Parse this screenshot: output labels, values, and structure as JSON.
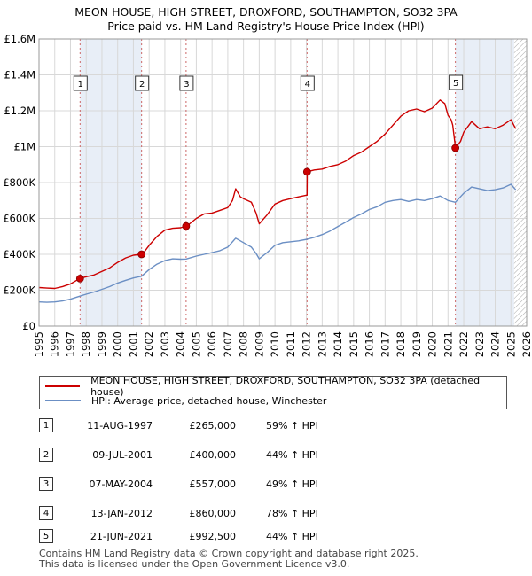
{
  "title_line1": "MEON HOUSE, HIGH STREET, DROXFORD, SOUTHAMPTON, SO32 3PA",
  "title_line2": "Price paid vs. HM Land Registry's House Price Index (HPI)",
  "colors": {
    "property": "#cc0000",
    "hpi": "#6b8fc4",
    "highlight": "#e8eef7",
    "hatch": "#aaaaaa",
    "grid": "#d8d8d8",
    "vline": "#cc6666"
  },
  "legend": {
    "property_label": "MEON HOUSE, HIGH STREET, DROXFORD, SOUTHAMPTON, SO32 3PA (detached house)",
    "hpi_label": "HPI: Average price, detached house, Winchester"
  },
  "sales": [
    {
      "num": "1",
      "date": "11-AUG-1997",
      "price": "£265,000",
      "hpi": "59% ↑ HPI",
      "x": 1997.61,
      "y": 265000
    },
    {
      "num": "2",
      "date": "09-JUL-2001",
      "price": "£400,000",
      "hpi": "44% ↑ HPI",
      "x": 2001.52,
      "y": 400000
    },
    {
      "num": "3",
      "date": "07-MAY-2004",
      "price": "£557,000",
      "hpi": "49% ↑ HPI",
      "x": 2004.35,
      "y": 557000
    },
    {
      "num": "4",
      "date": "13-JAN-2012",
      "price": "£860,000",
      "hpi": "78% ↑ HPI",
      "x": 2012.04,
      "y": 860000
    },
    {
      "num": "5",
      "date": "21-JUN-2021",
      "price": "£992,500",
      "hpi": "44% ↑ HPI",
      "x": 2021.47,
      "y": 992500
    }
  ],
  "footer_line1": "Contains HM Land Registry data © Crown copyright and database right 2025.",
  "footer_line2": "This data is licensed under the Open Government Licence v3.0.",
  "chart_data": {
    "type": "line",
    "title": "MEON HOUSE, HIGH STREET, DROXFORD, SOUTHAMPTON, SO32 3PA",
    "subtitle": "Price paid vs. HM Land Registry's House Price Index (HPI)",
    "xlim": [
      1995,
      2026
    ],
    "ylim": [
      0,
      1600000
    ],
    "x_ticks": [
      "1995",
      "1996",
      "1997",
      "1998",
      "1999",
      "2000",
      "2001",
      "2002",
      "2003",
      "2004",
      "2005",
      "2006",
      "2007",
      "2008",
      "2009",
      "2010",
      "2011",
      "2012",
      "2013",
      "2014",
      "2015",
      "2016",
      "2017",
      "2018",
      "2019",
      "2020",
      "2021",
      "2022",
      "2023",
      "2024",
      "2025",
      "2026"
    ],
    "y_ticks": [
      {
        "value": 0,
        "label": "£0"
      },
      {
        "value": 200000,
        "label": "£200K"
      },
      {
        "value": 400000,
        "label": "£400K"
      },
      {
        "value": 600000,
        "label": "£600K"
      },
      {
        "value": 800000,
        "label": "£800K"
      },
      {
        "value": 1000000,
        "label": "£1M"
      },
      {
        "value": 1200000,
        "label": "£1.2M"
      },
      {
        "value": 1400000,
        "label": "£1.4M"
      },
      {
        "value": 1600000,
        "label": "£1.6M"
      }
    ],
    "highlight_ranges": [
      [
        1997.61,
        2001.52
      ],
      [
        2021.47,
        2025.2
      ]
    ],
    "future_hatch_from": 2025.2,
    "series": [
      {
        "name": "MEON HOUSE, HIGH STREET, DROXFORD, SOUTHAMPTON, SO32 3PA (detached house)",
        "color": "#cc0000",
        "points": [
          [
            1995.0,
            215000
          ],
          [
            1995.5,
            212000
          ],
          [
            1996.0,
            210000
          ],
          [
            1996.5,
            220000
          ],
          [
            1997.0,
            235000
          ],
          [
            1997.6,
            265000
          ],
          [
            1998.0,
            275000
          ],
          [
            1998.5,
            285000
          ],
          [
            1999.0,
            305000
          ],
          [
            1999.5,
            325000
          ],
          [
            2000.0,
            355000
          ],
          [
            2000.5,
            380000
          ],
          [
            2001.0,
            395000
          ],
          [
            2001.52,
            400000
          ],
          [
            2001.53,
            395000
          ],
          [
            2002.0,
            450000
          ],
          [
            2002.5,
            500000
          ],
          [
            2003.0,
            535000
          ],
          [
            2003.5,
            545000
          ],
          [
            2004.0,
            548000
          ],
          [
            2004.35,
            557000
          ],
          [
            2004.36,
            555000
          ],
          [
            2005.0,
            600000
          ],
          [
            2005.5,
            625000
          ],
          [
            2006.0,
            630000
          ],
          [
            2006.5,
            645000
          ],
          [
            2007.0,
            660000
          ],
          [
            2007.3,
            700000
          ],
          [
            2007.5,
            765000
          ],
          [
            2007.8,
            720000
          ],
          [
            2008.0,
            710000
          ],
          [
            2008.5,
            690000
          ],
          [
            2008.8,
            630000
          ],
          [
            2009.0,
            570000
          ],
          [
            2009.5,
            620000
          ],
          [
            2010.0,
            680000
          ],
          [
            2010.5,
            700000
          ],
          [
            2011.0,
            710000
          ],
          [
            2011.5,
            720000
          ],
          [
            2012.04,
            730000
          ],
          [
            2012.05,
            860000
          ],
          [
            2012.5,
            870000
          ],
          [
            2013.0,
            875000
          ],
          [
            2013.5,
            890000
          ],
          [
            2014.0,
            900000
          ],
          [
            2014.5,
            920000
          ],
          [
            2015.0,
            950000
          ],
          [
            2015.5,
            970000
          ],
          [
            2016.0,
            1000000
          ],
          [
            2016.5,
            1030000
          ],
          [
            2017.0,
            1070000
          ],
          [
            2017.5,
            1120000
          ],
          [
            2018.0,
            1170000
          ],
          [
            2018.5,
            1200000
          ],
          [
            2019.0,
            1210000
          ],
          [
            2019.5,
            1195000
          ],
          [
            2020.0,
            1215000
          ],
          [
            2020.5,
            1260000
          ],
          [
            2020.8,
            1240000
          ],
          [
            2021.0,
            1175000
          ],
          [
            2021.2,
            1150000
          ],
          [
            2021.3,
            1120000
          ],
          [
            2021.47,
            1000000
          ],
          [
            2021.48,
            992500
          ],
          [
            2021.8,
            1030000
          ],
          [
            2022.0,
            1080000
          ],
          [
            2022.5,
            1140000
          ],
          [
            2023.0,
            1100000
          ],
          [
            2023.5,
            1110000
          ],
          [
            2024.0,
            1100000
          ],
          [
            2024.5,
            1120000
          ],
          [
            2025.0,
            1150000
          ],
          [
            2025.3,
            1100000
          ]
        ]
      },
      {
        "name": "HPI: Average price, detached house, Winchester",
        "color": "#6b8fc4",
        "points": [
          [
            1995.0,
            135000
          ],
          [
            1995.5,
            133000
          ],
          [
            1996.0,
            135000
          ],
          [
            1996.5,
            140000
          ],
          [
            1997.0,
            150000
          ],
          [
            1997.6,
            167000
          ],
          [
            1998.0,
            178000
          ],
          [
            1998.5,
            190000
          ],
          [
            1999.0,
            205000
          ],
          [
            1999.5,
            220000
          ],
          [
            2000.0,
            240000
          ],
          [
            2000.5,
            255000
          ],
          [
            2001.0,
            268000
          ],
          [
            2001.52,
            278000
          ],
          [
            2002.0,
            315000
          ],
          [
            2002.5,
            345000
          ],
          [
            2003.0,
            365000
          ],
          [
            2003.5,
            375000
          ],
          [
            2004.0,
            373000
          ],
          [
            2004.35,
            374000
          ],
          [
            2005.0,
            390000
          ],
          [
            2005.5,
            400000
          ],
          [
            2006.0,
            410000
          ],
          [
            2006.5,
            420000
          ],
          [
            2007.0,
            440000
          ],
          [
            2007.5,
            490000
          ],
          [
            2007.8,
            475000
          ],
          [
            2008.0,
            465000
          ],
          [
            2008.5,
            440000
          ],
          [
            2008.8,
            405000
          ],
          [
            2009.0,
            375000
          ],
          [
            2009.5,
            410000
          ],
          [
            2010.0,
            450000
          ],
          [
            2010.5,
            465000
          ],
          [
            2011.0,
            470000
          ],
          [
            2011.5,
            475000
          ],
          [
            2012.04,
            484000
          ],
          [
            2012.5,
            495000
          ],
          [
            2013.0,
            510000
          ],
          [
            2013.5,
            530000
          ],
          [
            2014.0,
            555000
          ],
          [
            2014.5,
            580000
          ],
          [
            2015.0,
            605000
          ],
          [
            2015.5,
            625000
          ],
          [
            2016.0,
            650000
          ],
          [
            2016.5,
            665000
          ],
          [
            2017.0,
            690000
          ],
          [
            2017.5,
            700000
          ],
          [
            2018.0,
            705000
          ],
          [
            2018.5,
            695000
          ],
          [
            2019.0,
            705000
          ],
          [
            2019.5,
            700000
          ],
          [
            2020.0,
            710000
          ],
          [
            2020.5,
            725000
          ],
          [
            2021.0,
            700000
          ],
          [
            2021.47,
            690000
          ],
          [
            2022.0,
            740000
          ],
          [
            2022.5,
            775000
          ],
          [
            2023.0,
            765000
          ],
          [
            2023.5,
            755000
          ],
          [
            2024.0,
            760000
          ],
          [
            2024.5,
            770000
          ],
          [
            2025.0,
            790000
          ],
          [
            2025.3,
            760000
          ]
        ]
      }
    ]
  }
}
